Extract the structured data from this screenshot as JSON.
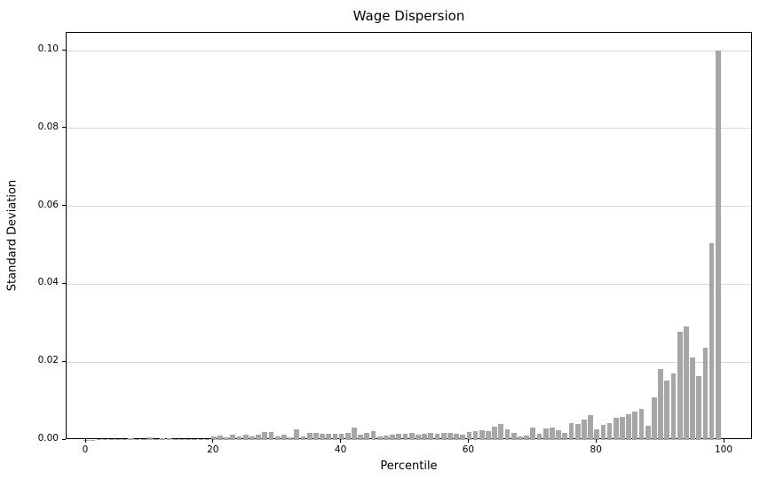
{
  "chart_data": {
    "type": "bar",
    "title": "Wage Dispersion",
    "xlabel": "Percentile",
    "ylabel": "Standard Deviation",
    "x_start": 0,
    "x_step": 1,
    "values": [
      0.0001,
      0.0001,
      0.0002,
      0.0002,
      0.0002,
      0.0003,
      0.0002,
      0.0005,
      0.0002,
      0.0003,
      0.0007,
      0.0003,
      0.0004,
      0.0004,
      0.0002,
      0.0003,
      0.0003,
      0.0002,
      0.0003,
      0.0002,
      0.0009,
      0.0012,
      0.0006,
      0.0014,
      0.001,
      0.0013,
      0.0009,
      0.0014,
      0.002,
      0.0021,
      0.001,
      0.0014,
      0.0007,
      0.0027,
      0.0009,
      0.0018,
      0.0019,
      0.0017,
      0.0015,
      0.0017,
      0.0015,
      0.0019,
      0.0032,
      0.0014,
      0.0019,
      0.0023,
      0.0008,
      0.0012,
      0.0014,
      0.0017,
      0.0015,
      0.0018,
      0.0014,
      0.0016,
      0.0018,
      0.0016,
      0.0018,
      0.0019,
      0.0016,
      0.0013,
      0.0021,
      0.0022,
      0.0024,
      0.0022,
      0.0035,
      0.0042,
      0.0028,
      0.0019,
      0.0008,
      0.0012,
      0.0033,
      0.0016,
      0.003,
      0.0033,
      0.0024,
      0.0019,
      0.0044,
      0.004,
      0.0052,
      0.0064,
      0.0027,
      0.0038,
      0.0044,
      0.0057,
      0.006,
      0.0066,
      0.0074,
      0.008,
      0.0036,
      0.011,
      0.0183,
      0.0152,
      0.017,
      0.0277,
      0.0292,
      0.0211,
      0.0165,
      0.0238,
      0.0505,
      0.1
    ],
    "xlim": [
      -3.06,
      104.45
    ],
    "ylim": [
      0,
      0.1046
    ],
    "xticks": [
      0,
      20,
      40,
      60,
      80,
      100
    ],
    "ytick_values": [
      0,
      0.02,
      0.04,
      0.06,
      0.08,
      0.1
    ],
    "ytick_labels": [
      "0.00",
      "0.02",
      "0.04",
      "0.06",
      "0.08",
      "0.10"
    ],
    "grid": "horizontal",
    "legend": "none",
    "bar_color": "#a6a6a6",
    "grid_color": "#d9d9d9",
    "frame_color": "#000000",
    "background_color": "#ffffff",
    "bar_width_fraction": 0.8
  }
}
